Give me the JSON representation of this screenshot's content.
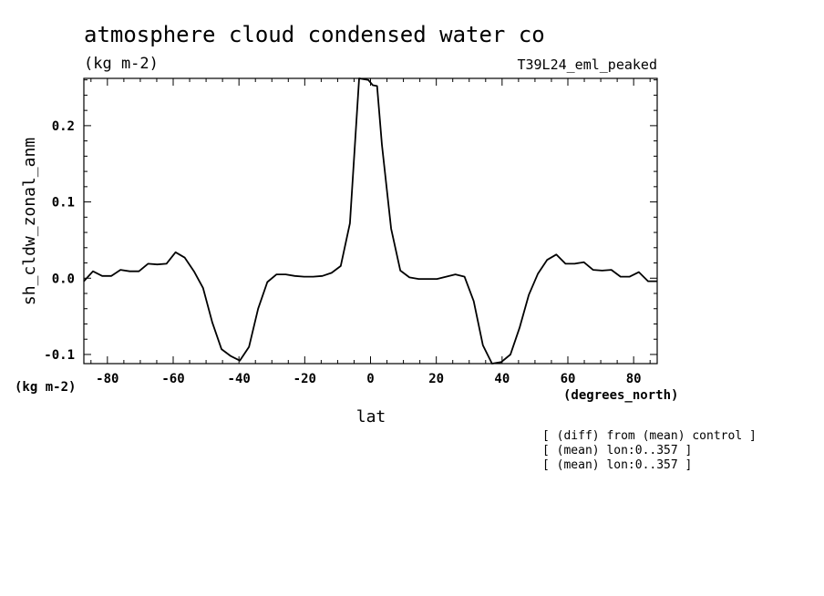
{
  "chart_data": {
    "type": "line",
    "title": "atmosphere cloud condensed water co",
    "units_label": "(kg m-2)",
    "run_label": "T39L24_eml_peaked",
    "xlabel": "lat",
    "ylabel": "sh_cldw_zonal_anm",
    "x_units": "(degrees_north)",
    "y_units": "(kg m-2)",
    "xlim": [
      -87.16,
      87.16
    ],
    "ylim": [
      -0.112,
      0.262
    ],
    "x_ticks": [
      "-80",
      "-60",
      "-40",
      "-20",
      "0",
      "20",
      "40",
      "60",
      "80"
    ],
    "y_ticks": [
      "-0.1",
      "0.0",
      "0.1",
      "0.2"
    ],
    "notes": [
      "[ (diff) from (mean) control ]",
      "[ (mean) lon:0..357 ]",
      "[ (mean) lon:0..357 ]"
    ],
    "series": [
      {
        "x": [
          -87.16,
          -84.38,
          -81.59,
          -78.8,
          -76.01,
          -73.22,
          -70.43,
          -67.64,
          -64.85,
          -62.06,
          -59.27,
          -56.48,
          -53.69,
          -50.9,
          -48.11,
          -45.32,
          -42.53,
          -39.74,
          -36.95,
          -34.16,
          -31.37,
          -28.58,
          -25.79,
          -23.0,
          -20.21,
          -17.42,
          -14.63,
          -11.84,
          -9.05,
          -6.26,
          -3.47,
          -0.7,
          0.7,
          2.0,
          3.47,
          6.26,
          9.05,
          11.84,
          14.63,
          17.42,
          20.21,
          23.0,
          25.79,
          28.58,
          31.37,
          34.16,
          36.95,
          39.74,
          42.53,
          45.32,
          48.11,
          50.9,
          53.69,
          56.48,
          59.27,
          62.06,
          64.85,
          67.64,
          70.43,
          73.22,
          76.01,
          78.8,
          81.59,
          84.38,
          87.16
        ],
        "y": [
          -0.004,
          0.009,
          0.003,
          0.003,
          0.011,
          0.009,
          0.009,
          0.019,
          0.018,
          0.019,
          0.034,
          0.027,
          0.009,
          -0.013,
          -0.058,
          -0.093,
          -0.102,
          -0.108,
          -0.09,
          -0.04,
          -0.005,
          0.005,
          0.005,
          0.003,
          0.002,
          0.002,
          0.003,
          0.007,
          0.016,
          0.072,
          0.262,
          0.26,
          0.253,
          0.252,
          0.175,
          0.065,
          0.01,
          0.001,
          -0.001,
          -0.001,
          -0.001,
          0.002,
          0.005,
          0.002,
          -0.03,
          -0.088,
          -0.112,
          -0.11,
          -0.1,
          -0.065,
          -0.022,
          0.006,
          0.024,
          0.031,
          0.019,
          0.019,
          0.021,
          0.011,
          0.01,
          0.011,
          0.002,
          0.002,
          0.008,
          -0.004,
          -0.004
        ]
      }
    ]
  }
}
